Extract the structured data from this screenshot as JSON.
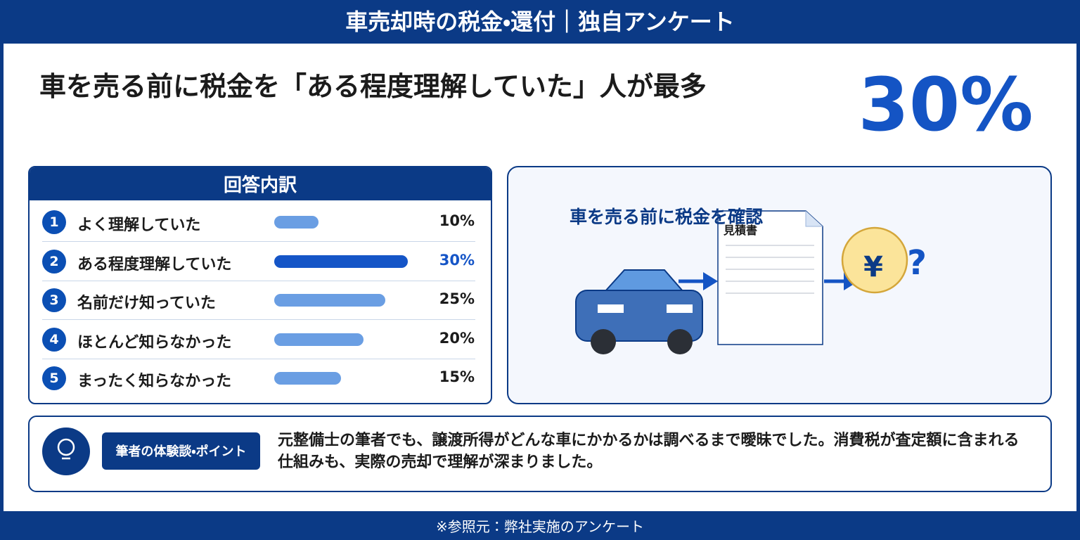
{
  "header": {
    "title": "車売却時の税金・還付｜独自アンケート"
  },
  "headline": "車を売る前に税金を「ある程度理解していた」人が最多",
  "highlight": "30%",
  "chart_data": {
    "type": "bar",
    "title": "回答内訳",
    "ranks": [
      1,
      2,
      3,
      4,
      5
    ],
    "categories": [
      "よく理解していた",
      "ある程度理解していた",
      "名前だけ知っていた",
      "ほとんど知らなかった",
      "まったく知らなかった"
    ],
    "values": [
      10,
      30,
      25,
      20,
      15
    ],
    "value_labels": [
      "10%",
      "30%",
      "25%",
      "20%",
      "15%"
    ],
    "colors": [
      "#6a9ee3",
      "#1555c7",
      "#6a9ee3",
      "#6a9ee3",
      "#6a9ee3"
    ]
  },
  "illustration": {
    "caption": "車を売る前に税金を確認",
    "document_label": "見積書",
    "currency": "¥",
    "question": "?"
  },
  "note": {
    "badge": "筆者の体験談・ポイント",
    "text": "元整備士の筆者でも、譲渡所得がどんな車にかかるかは調べるまで曖昧でした。消費税が査定額に含まれる仕組みも、実際の売却で理解が深まりました。"
  },
  "footer": "※参照元：弊社実施のアンケート"
}
